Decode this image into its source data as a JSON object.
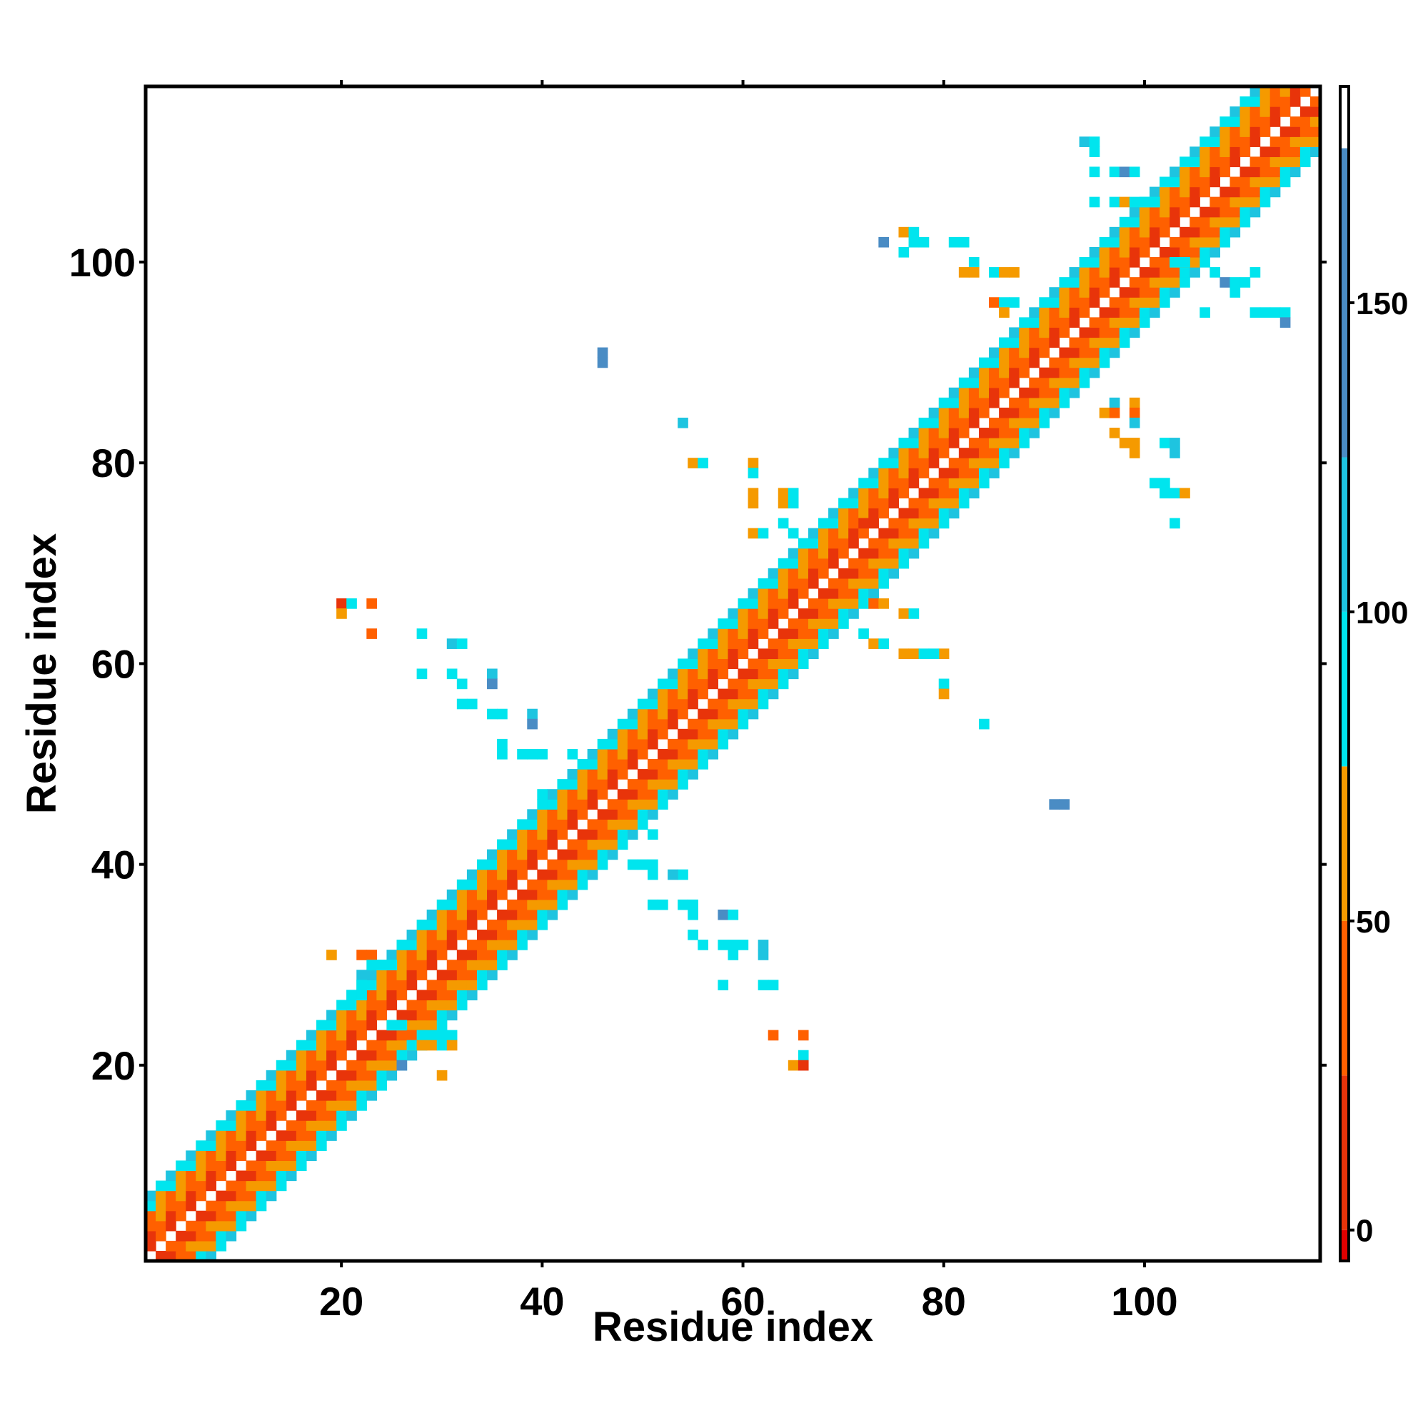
{
  "chart_data": {
    "type": "heatmap",
    "title": "",
    "xlabel": "Residue index",
    "ylabel": "Residue index",
    "xlim": [
      0.5,
      117.5
    ],
    "ylim": [
      0.5,
      117.5
    ],
    "x_ticks": [
      20,
      40,
      60,
      80,
      100
    ],
    "y_ticks": [
      20,
      40,
      60,
      80,
      100
    ],
    "grid": false,
    "colorbar": {
      "range": [
        -5,
        185
      ],
      "ticks": [
        0,
        50,
        100,
        150
      ],
      "bands": [
        {
          "from": -5,
          "to": 0,
          "color": "#e00000"
        },
        {
          "from": 0,
          "to": 25,
          "color": "#e8340a"
        },
        {
          "from": 25,
          "to": 50,
          "color": "#ff6000"
        },
        {
          "from": 50,
          "to": 75,
          "color": "#f59a00"
        },
        {
          "from": 75,
          "to": 100,
          "color": "#00e5ee"
        },
        {
          "from": 100,
          "to": 125,
          "color": "#1ec4e0"
        },
        {
          "from": 125,
          "to": 175,
          "color": "#4a8cc4"
        },
        {
          "from": 175,
          "to": 185,
          "color": "#ffffff"
        }
      ]
    },
    "value_colors": {
      "0": "#e8340a",
      "1": "#ff6000",
      "2": "#f59a00",
      "3": "#00e5ee",
      "4": "#1ec4e0",
      "5": "#4a8cc4"
    },
    "diagonal_band": {
      "x_range": [
        1,
        117
      ],
      "half_width": 6,
      "offset_pattern": {
        "1": [
          0,
          1
        ],
        "2": [
          1,
          0
        ],
        "3": [
          1,
          2
        ],
        "4": [
          2,
          1
        ],
        "5": [
          3,
          2
        ],
        "6": [
          3,
          4
        ]
      }
    },
    "cells": [
      [
        20,
        66,
        0
      ],
      [
        21,
        66,
        3
      ],
      [
        23,
        66,
        1
      ],
      [
        20,
        65,
        2
      ],
      [
        23,
        63,
        1
      ],
      [
        28,
        63,
        3
      ],
      [
        31,
        62,
        4
      ],
      [
        32,
        62,
        3
      ],
      [
        28,
        59,
        3
      ],
      [
        31,
        59,
        3
      ],
      [
        32,
        58,
        3
      ],
      [
        35,
        59,
        4
      ],
      [
        35,
        58,
        5
      ],
      [
        32,
        56,
        3
      ],
      [
        33,
        56,
        3
      ],
      [
        35,
        55,
        3
      ],
      [
        36,
        55,
        3
      ],
      [
        39,
        55,
        4
      ],
      [
        39,
        54,
        5
      ],
      [
        36,
        52,
        3
      ],
      [
        36,
        51,
        3
      ],
      [
        38,
        51,
        3
      ],
      [
        39,
        51,
        3
      ],
      [
        40,
        51,
        3
      ],
      [
        43,
        51,
        3
      ],
      [
        40,
        47,
        3
      ],
      [
        46,
        91,
        5
      ],
      [
        46,
        90,
        5
      ],
      [
        54,
        84,
        4
      ],
      [
        55,
        80,
        2
      ],
      [
        56,
        80,
        3
      ],
      [
        61,
        80,
        2
      ],
      [
        61,
        79,
        3
      ],
      [
        61,
        77,
        2
      ],
      [
        64,
        77,
        2
      ],
      [
        65,
        77,
        3
      ],
      [
        61,
        76,
        2
      ],
      [
        64,
        76,
        2
      ],
      [
        65,
        76,
        3
      ],
      [
        64,
        74,
        3
      ],
      [
        61,
        73,
        2
      ],
      [
        62,
        73,
        3
      ],
      [
        65,
        73,
        3
      ],
      [
        72,
        74,
        0
      ],
      [
        76,
        103,
        2
      ],
      [
        77,
        103,
        3
      ],
      [
        77,
        102,
        3
      ],
      [
        78,
        102,
        3
      ],
      [
        74,
        102,
        5
      ],
      [
        76,
        101,
        3
      ],
      [
        81,
        102,
        3
      ],
      [
        82,
        102,
        3
      ],
      [
        83,
        100,
        3
      ],
      [
        82,
        99,
        2
      ],
      [
        83,
        99,
        2
      ],
      [
        85,
        99,
        3
      ],
      [
        86,
        99,
        2
      ],
      [
        87,
        99,
        2
      ],
      [
        85,
        96,
        1
      ],
      [
        86,
        96,
        3
      ],
      [
        87,
        96,
        3
      ],
      [
        86,
        95,
        2
      ],
      [
        94,
        112,
        4
      ],
      [
        95,
        112,
        3
      ],
      [
        95,
        111,
        3
      ],
      [
        95,
        109,
        3
      ],
      [
        97,
        109,
        3
      ],
      [
        98,
        109,
        5
      ],
      [
        99,
        109,
        3
      ],
      [
        95,
        106,
        3
      ],
      [
        97,
        106,
        3
      ],
      [
        98,
        106,
        2
      ],
      [
        99,
        106,
        3
      ],
      [
        100,
        106,
        3
      ],
      [
        101,
        106,
        3
      ],
      [
        103,
        100,
        3
      ],
      [
        104,
        100,
        3
      ],
      [
        107,
        99,
        3
      ],
      [
        108,
        98,
        5
      ],
      [
        109,
        98,
        3
      ],
      [
        110,
        98,
        3
      ],
      [
        111,
        99,
        3
      ],
      [
        109,
        97,
        3
      ],
      [
        106,
        95,
        3
      ],
      [
        111,
        95,
        3
      ],
      [
        112,
        95,
        3
      ],
      [
        113,
        95,
        3
      ],
      [
        114,
        95,
        3
      ],
      [
        114,
        94,
        5
      ],
      [
        97,
        86,
        4
      ],
      [
        96,
        85,
        2
      ],
      [
        97,
        85,
        1
      ],
      [
        99,
        86,
        2
      ],
      [
        99,
        85,
        1
      ],
      [
        99,
        84,
        4
      ],
      [
        97,
        83,
        2
      ],
      [
        98,
        82,
        2
      ],
      [
        99,
        82,
        2
      ],
      [
        99,
        81,
        2
      ],
      [
        102,
        82,
        3
      ],
      [
        103,
        82,
        4
      ],
      [
        103,
        81,
        4
      ],
      [
        101,
        78,
        3
      ],
      [
        102,
        78,
        3
      ],
      [
        102,
        77,
        3
      ],
      [
        103,
        77,
        3
      ],
      [
        104,
        77,
        2
      ],
      [
        103,
        74,
        3
      ],
      [
        92,
        46,
        5
      ],
      [
        91,
        46,
        5
      ],
      [
        84,
        54,
        3
      ],
      [
        73,
        66,
        1
      ],
      [
        74,
        66,
        2
      ],
      [
        76,
        65,
        2
      ],
      [
        77,
        65,
        3
      ],
      [
        72,
        63,
        3
      ],
      [
        73,
        62,
        2
      ],
      [
        74,
        62,
        3
      ],
      [
        76,
        61,
        2
      ],
      [
        77,
        61,
        2
      ],
      [
        78,
        61,
        3
      ],
      [
        80,
        61,
        2
      ],
      [
        79,
        61,
        3
      ],
      [
        80,
        58,
        3
      ],
      [
        80,
        57,
        2
      ],
      [
        49,
        40,
        3
      ],
      [
        50,
        40,
        3
      ],
      [
        51,
        43,
        3
      ],
      [
        51,
        40,
        3
      ],
      [
        51,
        39,
        3
      ],
      [
        54,
        39,
        3
      ],
      [
        53,
        39,
        4
      ],
      [
        51,
        36,
        3
      ],
      [
        52,
        36,
        3
      ],
      [
        54,
        36,
        3
      ],
      [
        55,
        36,
        3
      ],
      [
        55,
        35,
        3
      ],
      [
        58,
        35,
        5
      ],
      [
        59,
        35,
        3
      ],
      [
        55,
        33,
        3
      ],
      [
        56,
        32,
        3
      ],
      [
        58,
        32,
        3
      ],
      [
        59,
        32,
        3
      ],
      [
        60,
        32,
        3
      ],
      [
        62,
        32,
        4
      ],
      [
        62,
        31,
        4
      ],
      [
        59,
        31,
        3
      ],
      [
        58,
        28,
        3
      ],
      [
        62,
        28,
        3
      ],
      [
        63,
        28,
        3
      ],
      [
        63,
        23,
        1
      ],
      [
        66,
        23,
        1
      ],
      [
        66,
        21,
        3
      ],
      [
        65,
        20,
        2
      ],
      [
        66,
        20,
        0
      ],
      [
        19,
        31,
        2
      ],
      [
        22,
        31,
        1
      ],
      [
        23,
        31,
        1
      ],
      [
        23,
        30,
        3
      ],
      [
        24,
        30,
        3
      ],
      [
        25,
        30,
        3
      ],
      [
        22,
        29,
        4
      ],
      [
        22,
        28,
        3
      ],
      [
        21,
        27,
        3
      ],
      [
        22,
        27,
        3
      ],
      [
        25,
        24,
        3
      ],
      [
        26,
        24,
        3
      ],
      [
        27,
        23,
        1
      ],
      [
        28,
        23,
        3
      ],
      [
        29,
        23,
        3
      ],
      [
        30,
        23,
        3
      ],
      [
        31,
        23,
        3
      ],
      [
        27,
        22,
        3
      ],
      [
        28,
        22,
        2
      ],
      [
        29,
        22,
        2
      ],
      [
        30,
        22,
        3
      ],
      [
        31,
        22,
        2
      ],
      [
        26,
        21,
        3
      ],
      [
        26,
        20,
        5
      ],
      [
        30,
        19,
        2
      ]
    ]
  },
  "colorbar_tick_labels": [
    "0",
    "50",
    "100",
    "150"
  ],
  "x_tick_labels": [
    "20",
    "40",
    "60",
    "80",
    "100"
  ],
  "y_tick_labels": [
    "20",
    "40",
    "60",
    "80",
    "100"
  ]
}
